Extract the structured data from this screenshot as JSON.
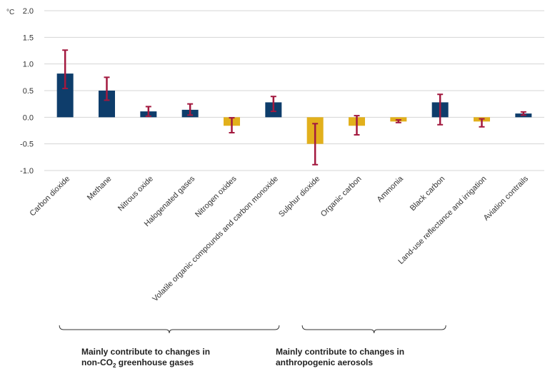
{
  "chart_data": {
    "type": "bar",
    "unit_label": "°C",
    "ylim": [
      -1.0,
      2.0
    ],
    "yticks": [
      "2.0",
      "1.5",
      "1.0",
      "0.5",
      "0.0",
      "-0.5",
      "-1.0"
    ],
    "grid": true,
    "categories": [
      "Carbon dioxide",
      "Methane",
      "Nitrous oxide",
      "Halogenated gases",
      "Nitrogen oxides",
      "Volatile organic compounds and carbon monoxide",
      "Sulphur dioxide",
      "Organic carbon",
      "Ammonia",
      "Black carbon",
      "Land-use reflectance and irrigation",
      "Aviation contrails"
    ],
    "values": [
      0.82,
      0.5,
      0.11,
      0.14,
      -0.16,
      0.28,
      -0.5,
      -0.16,
      -0.08,
      0.28,
      -0.08,
      0.07
    ],
    "error_low": [
      0.54,
      0.32,
      0.02,
      0.04,
      -0.29,
      0.11,
      -0.89,
      -0.33,
      -0.1,
      -0.14,
      -0.18,
      0.04
    ],
    "error_high": [
      1.26,
      0.75,
      0.2,
      0.25,
      -0.01,
      0.39,
      -0.12,
      0.03,
      -0.05,
      0.43,
      -0.03,
      0.1
    ],
    "colors": {
      "positive": "#0e3d6b",
      "negative": "#e2b01c",
      "error_bar": "#a3193f",
      "grid": "#d4d4d4"
    },
    "groups": [
      {
        "label_line1": "Mainly contribute to changes in",
        "label_line2_pre": "non-CO",
        "label_line2_sub": "2",
        "label_line2_post": " greenhouse gases"
      },
      {
        "label_line1": "Mainly contribute to changes in",
        "label_line2_pre": "anthropogenic aerosols",
        "label_line2_sub": "",
        "label_line2_post": ""
      }
    ]
  }
}
